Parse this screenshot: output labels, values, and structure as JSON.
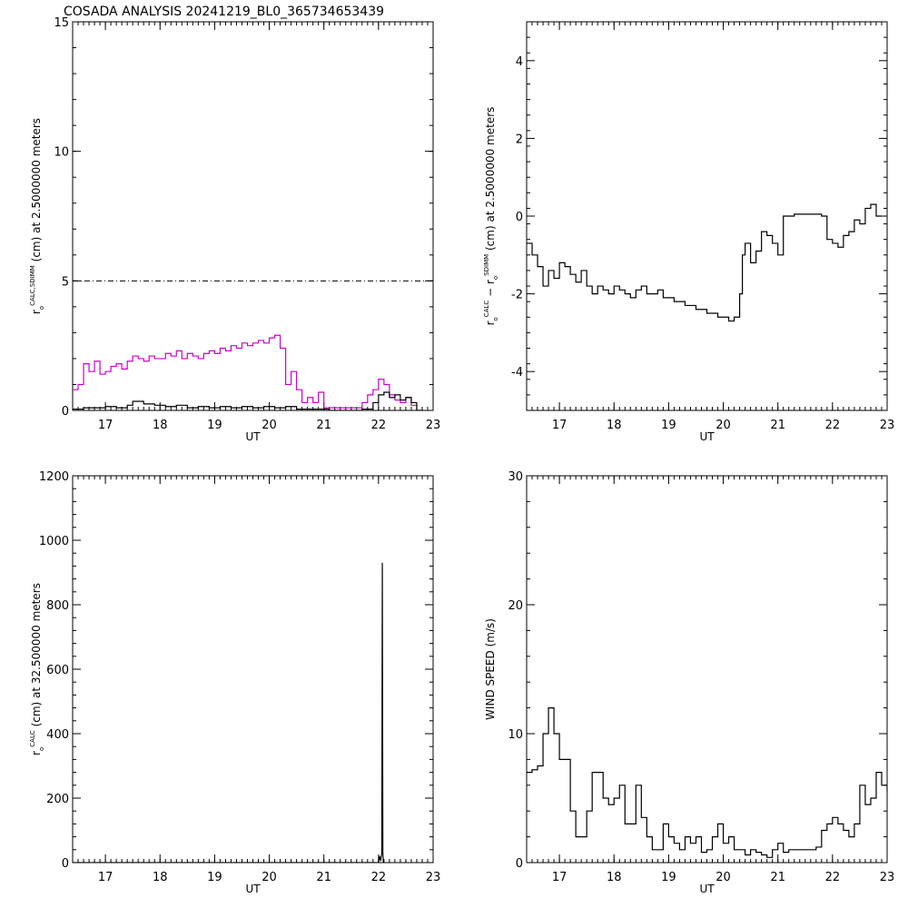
{
  "title": "COSADA ANALYSIS 20241219_BL0_365734653439",
  "colors": {
    "axes": "#000000",
    "series_black": "#000000",
    "series_magenta": "#cc00cc"
  },
  "chart_data": [
    {
      "type": "line",
      "id": "panel-r0-calc-sdimm",
      "xlabel": "UT",
      "ylabel": {
        "base": "r",
        "sub": "o",
        "sup": "CALC,SDIMM",
        "rest": "(cm)  at  2.5000000 meters"
      },
      "xlim": [
        16.4,
        23.0
      ],
      "ylim": [
        0,
        15
      ],
      "xticks": [
        17,
        18,
        19,
        20,
        21,
        22,
        23
      ],
      "yticks": [
        0,
        5,
        10,
        15
      ],
      "reference_line": {
        "y": 5,
        "style": "dash-dot"
      },
      "series": [
        {
          "color": "#cc00cc",
          "step": true,
          "x": [
            16.4,
            16.5,
            16.6,
            16.7,
            16.8,
            16.9,
            17.0,
            17.1,
            17.2,
            17.3,
            17.4,
            17.5,
            17.6,
            17.7,
            17.8,
            17.9,
            18.0,
            18.1,
            18.2,
            18.3,
            18.4,
            18.5,
            18.6,
            18.7,
            18.8,
            18.9,
            19.0,
            19.1,
            19.2,
            19.3,
            19.4,
            19.5,
            19.6,
            19.7,
            19.8,
            19.9,
            20.0,
            20.1,
            20.2,
            20.3,
            20.4,
            20.5,
            20.6,
            20.7,
            20.8,
            20.9,
            21.0,
            21.1,
            21.2,
            21.3,
            21.4,
            21.5,
            21.6,
            21.7,
            21.8,
            21.9,
            22.0,
            22.1,
            22.2,
            22.3,
            22.4,
            22.5,
            22.6,
            22.7
          ],
          "y": [
            0.8,
            1.0,
            1.8,
            1.5,
            1.9,
            1.4,
            1.5,
            1.7,
            1.8,
            1.6,
            1.9,
            2.1,
            2.0,
            1.9,
            2.1,
            2.0,
            2.0,
            2.2,
            2.1,
            2.3,
            2.0,
            2.2,
            2.1,
            2.0,
            2.2,
            2.3,
            2.2,
            2.4,
            2.3,
            2.5,
            2.4,
            2.6,
            2.5,
            2.6,
            2.7,
            2.6,
            2.8,
            2.9,
            2.4,
            1.0,
            1.5,
            0.8,
            0.3,
            0.5,
            0.3,
            0.7,
            0.1,
            0.1,
            0.1,
            0.1,
            0.1,
            0.1,
            0.1,
            0.3,
            0.6,
            0.8,
            1.2,
            1.0,
            0.6,
            0.4,
            0.3,
            0.5,
            0.2,
            0.0
          ]
        },
        {
          "color": "#000000",
          "step": true,
          "x": [
            16.4,
            16.6,
            16.8,
            17.0,
            17.2,
            17.4,
            17.5,
            17.7,
            17.9,
            18.1,
            18.3,
            18.5,
            18.7,
            18.9,
            19.1,
            19.3,
            19.5,
            19.7,
            19.9,
            20.1,
            20.3,
            20.5,
            20.7,
            20.9,
            21.1,
            21.3,
            21.5,
            21.7,
            21.9,
            22.0,
            22.1,
            22.2,
            22.3,
            22.4,
            22.5,
            22.6,
            22.7
          ],
          "y": [
            0.05,
            0.1,
            0.1,
            0.15,
            0.1,
            0.2,
            0.35,
            0.25,
            0.2,
            0.15,
            0.2,
            0.1,
            0.15,
            0.1,
            0.15,
            0.1,
            0.15,
            0.1,
            0.15,
            0.1,
            0.15,
            0.05,
            0.05,
            0.05,
            0.0,
            0.0,
            0.0,
            0.05,
            0.3,
            0.6,
            0.7,
            0.5,
            0.6,
            0.4,
            0.5,
            0.3,
            0.0
          ]
        }
      ]
    },
    {
      "type": "line",
      "id": "panel-r0-diff",
      "xlabel": "UT",
      "ylabel": {
        "base": "r",
        "sub": "o",
        "sup": "CALC",
        "mid": " − r",
        "sub2": "o",
        "sup2": "SDIMM",
        "rest": " (cm)  at  2.5000000 meters"
      },
      "xlim": [
        16.4,
        23.0
      ],
      "ylim": [
        -5,
        5
      ],
      "xticks": [
        17,
        18,
        19,
        20,
        21,
        22,
        23
      ],
      "yticks": [
        -4,
        -2,
        0,
        2,
        4
      ],
      "series": [
        {
          "color": "#000000",
          "step": true,
          "x": [
            16.4,
            16.5,
            16.6,
            16.7,
            16.8,
            16.9,
            17.0,
            17.1,
            17.2,
            17.3,
            17.4,
            17.5,
            17.6,
            17.7,
            17.8,
            17.9,
            18.0,
            18.1,
            18.2,
            18.3,
            18.4,
            18.5,
            18.6,
            18.7,
            18.8,
            18.9,
            19.0,
            19.1,
            19.2,
            19.3,
            19.4,
            19.5,
            19.6,
            19.7,
            19.8,
            19.9,
            20.0,
            20.1,
            20.2,
            20.3,
            20.35,
            20.4,
            20.5,
            20.6,
            20.7,
            20.8,
            20.9,
            21.0,
            21.1,
            21.3,
            21.5,
            21.7,
            21.8,
            21.9,
            22.0,
            22.1,
            22.2,
            22.3,
            22.4,
            22.5,
            22.6,
            22.7,
            22.8
          ],
          "y": [
            -0.7,
            -1.0,
            -1.3,
            -1.8,
            -1.4,
            -1.6,
            -1.2,
            -1.3,
            -1.5,
            -1.7,
            -1.4,
            -1.8,
            -2.0,
            -1.8,
            -1.9,
            -2.0,
            -1.8,
            -1.9,
            -2.0,
            -2.1,
            -1.9,
            -1.8,
            -2.0,
            -2.0,
            -1.9,
            -2.1,
            -2.1,
            -2.2,
            -2.2,
            -2.3,
            -2.3,
            -2.4,
            -2.4,
            -2.5,
            -2.5,
            -2.6,
            -2.6,
            -2.7,
            -2.6,
            -2.0,
            -1.0,
            -0.7,
            -1.2,
            -0.9,
            -0.4,
            -0.5,
            -0.7,
            -1.0,
            0.0,
            0.05,
            0.05,
            0.05,
            0.0,
            -0.6,
            -0.7,
            -0.8,
            -0.5,
            -0.4,
            -0.1,
            -0.2,
            0.2,
            0.3,
            0.0
          ]
        }
      ]
    },
    {
      "type": "line",
      "id": "panel-r0-calc-32m",
      "xlabel": "UT",
      "ylabel": {
        "base": "r",
        "sub": "o",
        "sup": "CALC",
        "rest": "(cm)  at  32.500000 meters"
      },
      "xlim": [
        16.4,
        23.0
      ],
      "ylim": [
        0,
        1200
      ],
      "xticks": [
        17,
        18,
        19,
        20,
        21,
        22,
        23
      ],
      "yticks": [
        0,
        200,
        400,
        600,
        800,
        1000,
        1200
      ],
      "series": [
        {
          "color": "#000000",
          "step": false,
          "x": [
            16.4,
            22.0,
            22.02,
            22.04,
            22.06,
            22.07,
            22.08,
            22.09
          ],
          "y": [
            0,
            0,
            20,
            5,
            30,
            930,
            30,
            0
          ]
        }
      ]
    },
    {
      "type": "line",
      "id": "panel-wind-speed",
      "xlabel": "UT",
      "ylabel": {
        "base": "WIND SPEED (m/s)"
      },
      "xlim": [
        16.4,
        23.0
      ],
      "ylim": [
        0,
        30
      ],
      "xticks": [
        17,
        18,
        19,
        20,
        21,
        22,
        23
      ],
      "yticks": [
        0,
        10,
        20,
        30
      ],
      "series": [
        {
          "color": "#000000",
          "step": true,
          "x": [
            16.4,
            16.5,
            16.6,
            16.7,
            16.8,
            16.9,
            17.0,
            17.1,
            17.2,
            17.3,
            17.4,
            17.5,
            17.6,
            17.7,
            17.8,
            17.9,
            18.0,
            18.1,
            18.2,
            18.3,
            18.4,
            18.5,
            18.6,
            18.7,
            18.8,
            18.9,
            19.0,
            19.1,
            19.2,
            19.3,
            19.4,
            19.5,
            19.6,
            19.7,
            19.8,
            19.9,
            20.0,
            20.1,
            20.2,
            20.3,
            20.4,
            20.5,
            20.6,
            20.7,
            20.8,
            20.9,
            21.0,
            21.1,
            21.2,
            21.3,
            21.5,
            21.7,
            21.8,
            21.9,
            22.0,
            22.1,
            22.2,
            22.3,
            22.4,
            22.5,
            22.6,
            22.7,
            22.8,
            22.9,
            23.0
          ],
          "y": [
            7,
            7.2,
            7.5,
            10,
            12,
            10,
            8,
            8,
            4,
            2,
            2,
            4,
            7,
            7,
            5,
            4.5,
            5,
            6,
            3,
            3,
            6,
            3.5,
            2,
            1,
            1,
            3,
            2,
            1.5,
            1,
            2,
            1.5,
            2,
            0.8,
            1,
            2,
            3,
            1.5,
            2,
            1,
            1,
            0.6,
            1,
            0.8,
            0.6,
            0.4,
            1,
            1.5,
            0.8,
            1,
            1,
            1,
            1.2,
            2.5,
            3,
            3.5,
            3,
            2.5,
            2,
            3,
            6,
            4.5,
            5,
            7,
            6,
            5.5
          ]
        }
      ]
    }
  ]
}
